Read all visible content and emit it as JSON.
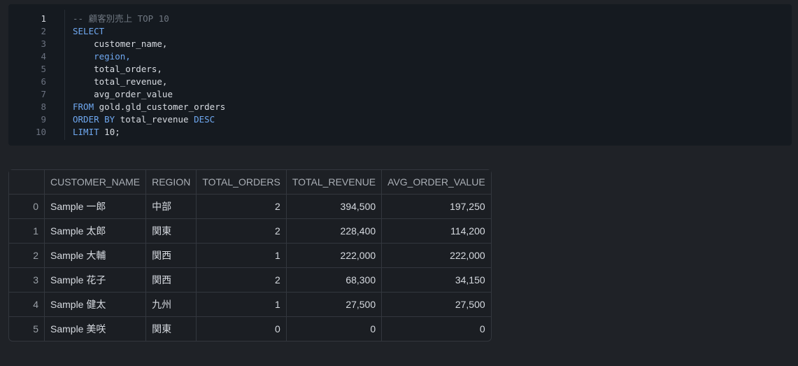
{
  "code": {
    "line_numbers": [
      1,
      2,
      3,
      4,
      5,
      6,
      7,
      8,
      9,
      10
    ],
    "active_line": 1,
    "lines": [
      [
        {
          "text": "-- 顧客別売上 TOP 10",
          "style": "comment"
        }
      ],
      [
        {
          "text": "SELECT",
          "style": "keyword"
        }
      ],
      [
        {
          "text": "    customer_name,",
          "style": "plain"
        }
      ],
      [
        {
          "text": "    region,",
          "style": "keyword"
        }
      ],
      [
        {
          "text": "    total_orders,",
          "style": "plain"
        }
      ],
      [
        {
          "text": "    total_revenue,",
          "style": "plain"
        }
      ],
      [
        {
          "text": "    avg_order_value",
          "style": "plain"
        }
      ],
      [
        {
          "text": "FROM",
          "style": "keyword"
        },
        {
          "text": " gold.gld_customer_orders",
          "style": "plain"
        }
      ],
      [
        {
          "text": "ORDER BY",
          "style": "keyword"
        },
        {
          "text": " total_revenue ",
          "style": "plain"
        },
        {
          "text": "DESC",
          "style": "keyword"
        }
      ],
      [
        {
          "text": "LIMIT",
          "style": "keyword"
        },
        {
          "text": " 10;",
          "style": "plain"
        }
      ]
    ]
  },
  "table": {
    "columns": [
      "CUSTOMER_NAME",
      "REGION",
      "TOTAL_ORDERS",
      "TOTAL_REVENUE",
      "AVG_ORDER_VALUE"
    ],
    "numeric_columns": [
      2,
      3,
      4
    ],
    "widths": [
      143,
      69,
      122,
      131,
      147
    ],
    "index": [
      "0",
      "1",
      "2",
      "3",
      "4",
      "5"
    ],
    "rows": [
      [
        "Sample 一郎",
        "中部",
        "2",
        "394,500",
        "197,250"
      ],
      [
        "Sample 太郎",
        "関東",
        "2",
        "228,400",
        "114,200"
      ],
      [
        "Sample 大輔",
        "関西",
        "1",
        "222,000",
        "222,000"
      ],
      [
        "Sample 花子",
        "関西",
        "2",
        "68,300",
        "34,150"
      ],
      [
        "Sample 健太",
        "九州",
        "1",
        "27,500",
        "27,500"
      ],
      [
        "Sample 美咲",
        "関東",
        "0",
        "0",
        "0"
      ]
    ]
  }
}
